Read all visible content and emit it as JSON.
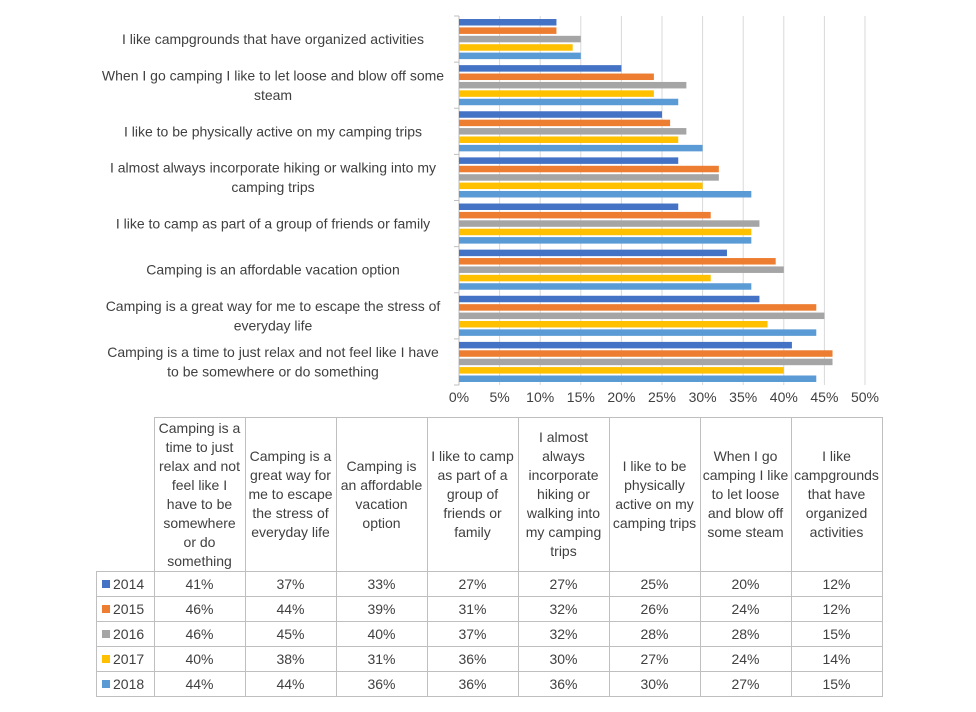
{
  "chart_data": {
    "type": "bar",
    "orientation": "horizontal",
    "categories": [
      "Camping is a time to just relax and not feel like I have to be somewhere or do something",
      "Camping is a great way for me to escape the stress of everyday life",
      "Camping is an affordable vacation option",
      "I like to camp as part of a group of friends or family",
      "I almost always incorporate hiking or walking into my camping trips",
      "I like to be physically active on my camping trips",
      "When I go camping I like to let loose and blow off some steam",
      "I like campgrounds that have organized activities"
    ],
    "axis_labels": [
      [
        "Camping is a time to just relax and not feel like I have",
        "to be somewhere or do something"
      ],
      [
        "Camping is a great way for me to escape the stress of",
        "everyday life"
      ],
      [
        "Camping is an affordable vacation option"
      ],
      [
        "I like to camp as part of a group of friends or family"
      ],
      [
        "I almost always incorporate hiking or walking into my",
        "camping trips"
      ],
      [
        "I like to be physically active on my camping trips"
      ],
      [
        "When I go camping I like to let loose and blow off some",
        "steam"
      ],
      [
        "I like campgrounds that have organized activities"
      ]
    ],
    "table_headers": [
      [
        "Camping is a",
        "time to just",
        "relax and not",
        "feel like I",
        "have to be",
        "somewhere",
        "or do",
        "something"
      ],
      [
        "Camping is a",
        "great way for",
        "me to escape",
        "the stress of",
        "everyday life"
      ],
      [
        "Camping is",
        "an affordable",
        "vacation",
        "option"
      ],
      [
        "I like to camp",
        "as part of a",
        "group of",
        "friends or",
        "family"
      ],
      [
        "I almost",
        "always",
        "incorporate",
        "hiking or",
        "walking into",
        "my camping",
        "trips"
      ],
      [
        "I like to be",
        "physically",
        "active on my",
        "camping trips"
      ],
      [
        "When I go",
        "camping I like",
        "to let loose",
        "and blow off",
        "some steam"
      ],
      [
        "I like",
        "campgrounds",
        "that have",
        "organized",
        "activities"
      ]
    ],
    "series": [
      {
        "name": "2014",
        "color": "#4472C4",
        "values": [
          41,
          37,
          33,
          27,
          27,
          25,
          20,
          12
        ],
        "labels": [
          "41%",
          "37%",
          "33%",
          "27%",
          "27%",
          "25%",
          "20%",
          "12%"
        ]
      },
      {
        "name": "2015",
        "color": "#ED7D31",
        "values": [
          46,
          44,
          39,
          31,
          32,
          26,
          24,
          12
        ],
        "labels": [
          "46%",
          "44%",
          "39%",
          "31%",
          "32%",
          "26%",
          "24%",
          "12%"
        ]
      },
      {
        "name": "2016",
        "color": "#A5A5A5",
        "values": [
          46,
          45,
          40,
          37,
          32,
          28,
          28,
          15
        ],
        "labels": [
          "46%",
          "45%",
          "40%",
          "37%",
          "32%",
          "28%",
          "28%",
          "15%"
        ]
      },
      {
        "name": "2017",
        "color": "#FFC000",
        "values": [
          40,
          38,
          31,
          36,
          30,
          27,
          24,
          14
        ],
        "labels": [
          "40%",
          "38%",
          "31%",
          "36%",
          "30%",
          "27%",
          "24%",
          "14%"
        ]
      },
      {
        "name": "2018",
        "color": "#5B9BD5",
        "values": [
          44,
          44,
          36,
          36,
          36,
          30,
          27,
          15
        ],
        "labels": [
          "44%",
          "44%",
          "36%",
          "36%",
          "36%",
          "30%",
          "27%",
          "15%"
        ]
      }
    ],
    "xlim": [
      0,
      50
    ],
    "x_ticks": [
      "0%",
      "5%",
      "10%",
      "15%",
      "20%",
      "25%",
      "30%",
      "35%",
      "40%",
      "45%",
      "50%"
    ],
    "grid": true,
    "legend": "data-table-below",
    "title": "",
    "xlabel": "",
    "ylabel": ""
  }
}
